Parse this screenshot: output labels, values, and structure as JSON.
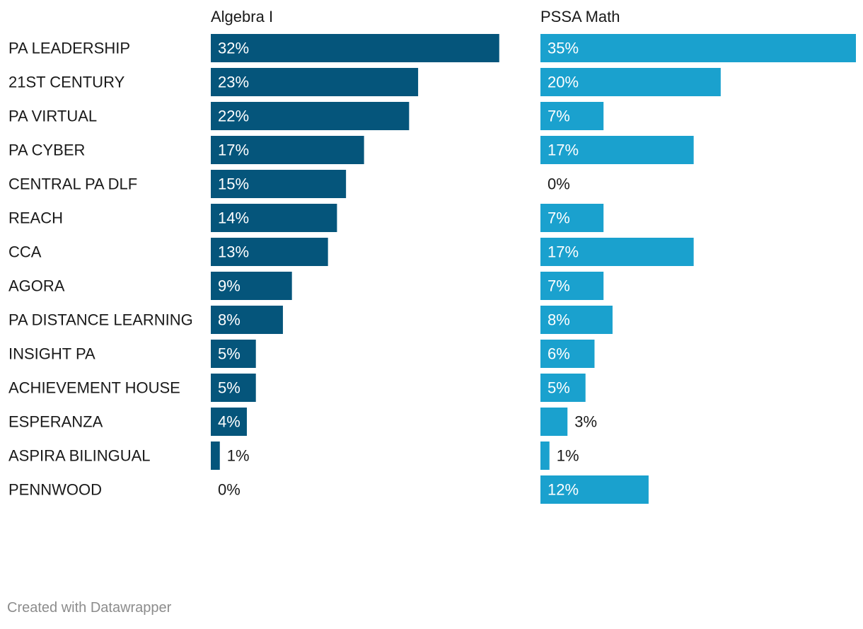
{
  "chart_data": {
    "type": "bar",
    "orientation": "horizontal",
    "layout": "small-multiples",
    "categories": [
      "PA LEADERSHIP",
      "21ST CENTURY",
      "PA VIRTUAL",
      "PA CYBER",
      "CENTRAL PA DLF",
      "REACH",
      "CCA",
      "AGORA",
      "PA DISTANCE LEARNING",
      "INSIGHT PA",
      "ACHIEVEMENT HOUSE",
      "ESPERANZA",
      "ASPIRA BILINGUAL",
      "PENNWOOD"
    ],
    "series": [
      {
        "name": "Algebra I",
        "color": "#05557b",
        "values": [
          32,
          23,
          22,
          17,
          15,
          14,
          13,
          9,
          8,
          5,
          5,
          4,
          1,
          0
        ]
      },
      {
        "name": "PSSA Math",
        "color": "#1aa1ce",
        "values": [
          35,
          20,
          7,
          17,
          0,
          7,
          17,
          7,
          8,
          6,
          5,
          3,
          1,
          12
        ]
      }
    ],
    "value_suffix": "%",
    "xlim": [
      0,
      35
    ],
    "grid": false,
    "title": "",
    "xlabel": "",
    "ylabel": ""
  },
  "footer": {
    "credit": "Created with Datawrapper"
  },
  "colors": {
    "label_text": "#1a1a1a",
    "inner_label_text": "#ffffff",
    "footer_text": "#8c8c8c"
  }
}
